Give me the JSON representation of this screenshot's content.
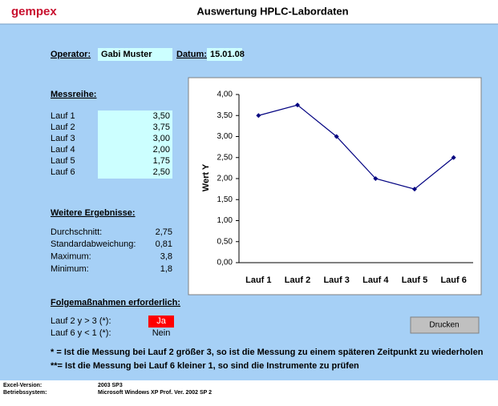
{
  "header": {
    "logo": "gempex",
    "title": "Auswertung HPLC-Labordaten"
  },
  "operator": {
    "label": "Operator:",
    "value": "Gabi Muster",
    "date_label": "Datum:",
    "date": "15.01.08"
  },
  "series_heading": "Messreihe:",
  "results": {
    "heading": "Weitere Ergebnisse:",
    "rows": [
      [
        "Durchschnitt:",
        "2,75"
      ],
      [
        "Standardabweichung:",
        "0,81"
      ],
      [
        "Maximum:",
        "3,8"
      ],
      [
        "Minimum:",
        "1,8"
      ]
    ]
  },
  "actions": {
    "heading": "Folgemaßnahmen erforderlich:",
    "rows": [
      [
        "Lauf 2 y > 3 (*):",
        "Ja"
      ],
      [
        "Lauf 6 y < 1 (*):",
        "Nein"
      ]
    ],
    "button": "Drucken"
  },
  "notes": [
    "* = Ist die Messung bei Lauf 2 größer 3, so ist die Messung zu einem späteren Zeitpunkt zu wiederholen",
    "**= Ist die Messung bei Lauf 6 kleiner 1, so sind die Instrumente zu prüfen"
  ],
  "footer": [
    [
      "Excel-Version:",
      "2003 SP3"
    ],
    [
      "Betriebssystem:",
      "Microsoft Windows XP Prof. Ver. 2002 SP 2"
    ]
  ],
  "chart_data": {
    "type": "line",
    "y_label": "Wert Y",
    "categories": [
      "Lauf 1",
      "Lauf 2",
      "Lauf 3",
      "Lauf 4",
      "Lauf 5",
      "Lauf 6"
    ],
    "values": [
      3.5,
      3.75,
      3.0,
      2.0,
      1.75,
      2.5
    ],
    "value_labels": [
      "3,50",
      "3,75",
      "3,00",
      "2,00",
      "1,75",
      "2,50"
    ],
    "color": "#000080",
    "ylim": [
      0,
      4
    ],
    "yticks": [
      {
        "value": 0,
        "label": "0,00"
      },
      {
        "value": 0.5,
        "label": "0,50"
      },
      {
        "value": 1,
        "label": "1,00"
      },
      {
        "value": 1.5,
        "label": "1,50"
      },
      {
        "value": 2,
        "label": "2,00"
      },
      {
        "value": 2.5,
        "label": "2,50"
      },
      {
        "value": 3,
        "label": "3,00"
      },
      {
        "value": 3.5,
        "label": "3,50"
      },
      {
        "value": 4,
        "label": "4,00"
      }
    ]
  }
}
